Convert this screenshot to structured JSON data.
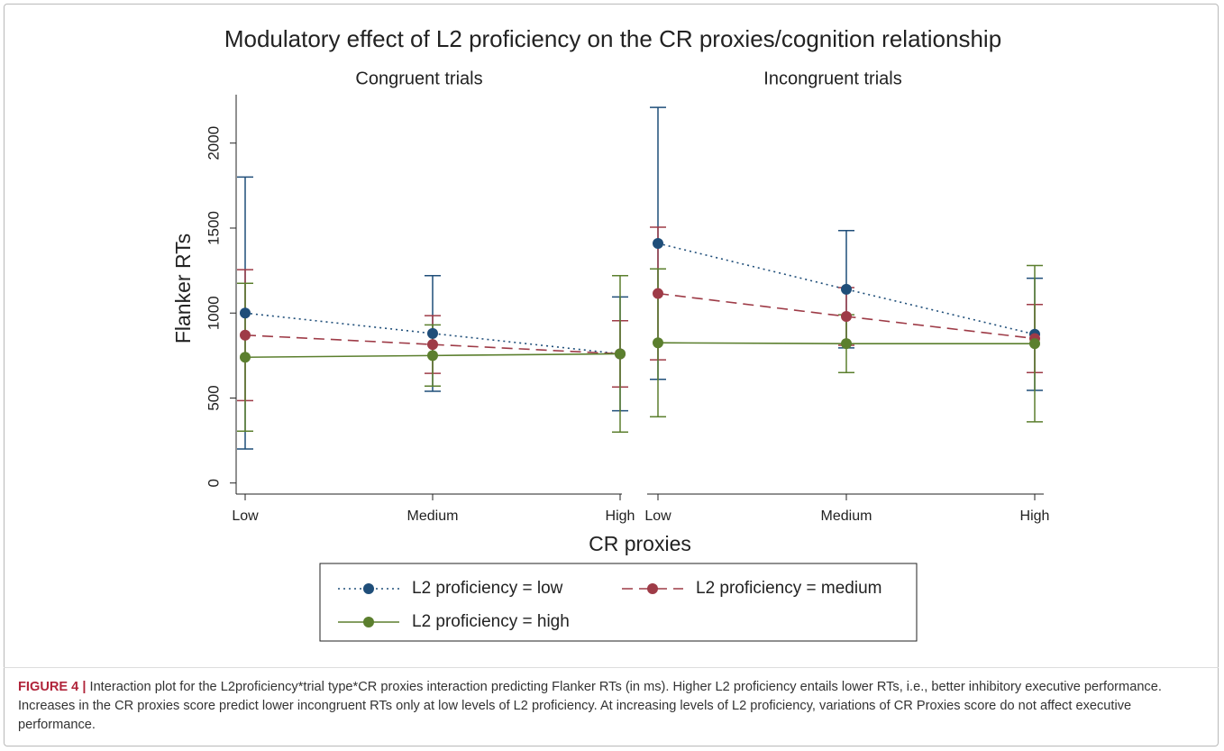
{
  "chart_data": {
    "type": "line",
    "title": "Modulatory effect of L2 proficiency on the CR proxies/cognition relationship",
    "panels": [
      "Congruent trials",
      "Incongruent trials"
    ],
    "xlabel": "CR proxies",
    "ylabel": "Flanker RTs",
    "categories": [
      "Low",
      "Medium",
      "High"
    ],
    "ylim": [
      -65,
      2285
    ],
    "yticks": [
      0,
      500,
      1000,
      1500,
      2000
    ],
    "series": [
      {
        "name": "L2 proficiency = low",
        "color": "#1f4e79",
        "dash": "dotted",
        "values": [
          [
            1000,
            880,
            760
          ],
          [
            1410,
            1140,
            875
          ]
        ],
        "errors": [
          [
            800,
            340,
            335
          ],
          [
            800,
            345,
            330
          ]
        ]
      },
      {
        "name": "L2 proficiency = medium",
        "color": "#9e3b47",
        "dash": "dashed",
        "values": [
          [
            870,
            815,
            760
          ],
          [
            1115,
            980,
            850
          ]
        ],
        "errors": [
          [
            385,
            170,
            195
          ],
          [
            390,
            170,
            200
          ]
        ]
      },
      {
        "name": "L2 proficiency = high",
        "color": "#5b7f2e",
        "dash": "solid",
        "values": [
          [
            740,
            750,
            760
          ],
          [
            825,
            820,
            820
          ]
        ],
        "errors": [
          [
            435,
            180,
            460
          ],
          [
            435,
            170,
            460
          ]
        ]
      }
    ]
  },
  "caption": {
    "label": "FIGURE 4 |",
    "text": "Interaction plot for the L2proficiency*trial type*CR proxies interaction predicting Flanker RTs (in ms). Higher L2 proficiency entails lower RTs, i.e., better inhibitory executive performance. Increases in the CR proxies score predict lower incongruent RTs only at low levels of L2 proficiency. At increasing levels of L2 proficiency, variations of CR Proxies score do not affect executive performance."
  }
}
